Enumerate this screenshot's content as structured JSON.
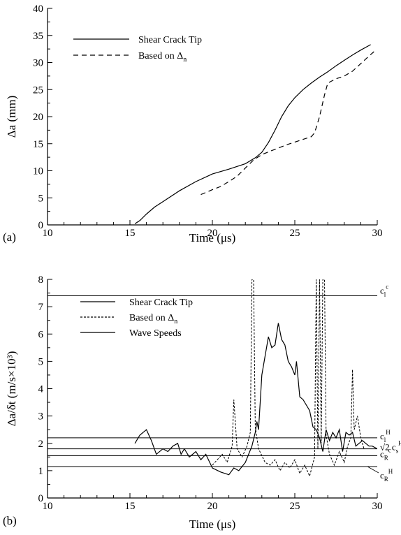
{
  "chart_data": [
    {
      "panel_label": "(a)",
      "type": "line",
      "xlabel": "Time (μs)",
      "ylabel": "Δa (mm)",
      "xlim": [
        10,
        30
      ],
      "ylim": [
        0,
        40
      ],
      "xticks": [
        10,
        15,
        20,
        25,
        30
      ],
      "yticks": [
        0,
        5,
        10,
        15,
        20,
        25,
        30,
        35,
        40
      ],
      "legend_position": "top-left",
      "series": [
        {
          "name": "Shear Crack Tip",
          "style": "solid",
          "x": [
            15.3,
            15.6,
            16.0,
            16.5,
            17.0,
            18.0,
            19.0,
            20.0,
            21.0,
            22.0,
            22.6,
            23.0,
            23.4,
            23.8,
            24.2,
            24.6,
            25.0,
            25.5,
            26.0,
            26.5,
            27.0,
            27.5,
            28.0,
            28.5,
            29.0,
            29.6
          ],
          "values": [
            0.2,
            0.8,
            2.0,
            3.3,
            4.3,
            6.3,
            8.0,
            9.4,
            10.3,
            11.3,
            12.4,
            13.4,
            15.2,
            17.5,
            20.0,
            22.0,
            23.5,
            25.0,
            26.2,
            27.3,
            28.3,
            29.4,
            30.4,
            31.4,
            32.3,
            33.3
          ]
        },
        {
          "name": "Based on Δn",
          "style": "dashed",
          "x": [
            19.3,
            20.0,
            20.5,
            21.0,
            21.5,
            22.0,
            22.5,
            23.0,
            23.5,
            24.0,
            24.5,
            25.0,
            25.5,
            26.0,
            26.2,
            26.5,
            26.8,
            27.0,
            27.5,
            28.0,
            28.5,
            29.0,
            29.5,
            29.8
          ],
          "values": [
            5.6,
            6.5,
            7.1,
            8.0,
            9.0,
            10.5,
            12.0,
            13.0,
            13.6,
            14.2,
            14.8,
            15.3,
            15.8,
            16.3,
            17.0,
            20.0,
            24.0,
            26.2,
            27.0,
            27.5,
            28.4,
            29.8,
            31.2,
            32.0
          ]
        }
      ]
    },
    {
      "panel_label": "(b)",
      "type": "line",
      "xlabel": "Time (μs)",
      "ylabel": "Δa/δt (m/s×10³)",
      "xlim": [
        10,
        30
      ],
      "ylim": [
        0,
        8
      ],
      "xticks": [
        10,
        15,
        20,
        25,
        30
      ],
      "yticks": [
        0,
        1,
        2,
        3,
        4,
        5,
        6,
        7,
        8
      ],
      "legend_position": "top-left",
      "series": [
        {
          "name": "Shear Crack Tip",
          "style": "solid",
          "x": [
            15.3,
            15.6,
            16.0,
            16.3,
            16.6,
            17.0,
            17.3,
            17.6,
            17.9,
            18.1,
            18.3,
            18.6,
            19.0,
            19.3,
            19.6,
            20.0,
            20.5,
            21.0,
            21.3,
            21.6,
            22.0,
            22.2,
            22.4,
            22.6,
            22.7,
            22.8,
            23.0,
            23.2,
            23.4,
            23.6,
            23.8,
            24.0,
            24.2,
            24.4,
            24.6,
            24.8,
            25.0,
            25.1,
            25.3,
            25.5,
            25.7,
            25.9,
            26.1,
            26.3,
            26.5,
            26.7,
            26.9,
            27.1,
            27.3,
            27.5,
            27.7,
            27.9,
            28.1,
            28.3,
            28.5,
            28.7,
            28.9,
            29.1,
            29.3,
            29.5,
            29.7,
            30.0
          ],
          "values": [
            2.0,
            2.3,
            2.5,
            2.1,
            1.6,
            1.8,
            1.7,
            1.9,
            2.0,
            1.6,
            1.8,
            1.5,
            1.7,
            1.4,
            1.6,
            1.1,
            0.95,
            0.85,
            1.1,
            1.0,
            1.3,
            1.6,
            1.9,
            2.4,
            2.8,
            2.5,
            4.5,
            5.2,
            5.9,
            5.5,
            5.6,
            6.4,
            5.8,
            5.6,
            5.0,
            4.8,
            4.5,
            5.0,
            3.7,
            3.6,
            3.4,
            3.2,
            2.6,
            2.5,
            2.2,
            1.7,
            2.5,
            2.1,
            2.4,
            2.2,
            2.5,
            1.7,
            2.4,
            2.3,
            2.4,
            1.9,
            2.0,
            2.1,
            2.0,
            1.9,
            1.9,
            1.8
          ]
        },
        {
          "name": "Based on Δn",
          "style": "dotted",
          "x": [
            20.0,
            20.3,
            20.6,
            20.9,
            21.2,
            21.3,
            21.5,
            21.8,
            22.1,
            22.3,
            22.4,
            22.5,
            22.6,
            22.8,
            23.2,
            23.5,
            23.8,
            24.1,
            24.4,
            24.7,
            25.0,
            25.3,
            25.6,
            25.9,
            26.2,
            26.3,
            26.4,
            26.5,
            26.6,
            26.7,
            26.8,
            26.9,
            27.1,
            27.4,
            27.7,
            28.0,
            28.2,
            28.4,
            28.5,
            28.6,
            28.8,
            29.0,
            29.2
          ],
          "values": [
            1.2,
            1.4,
            1.6,
            1.3,
            1.9,
            3.6,
            1.8,
            1.5,
            1.9,
            2.4,
            8.0,
            8.0,
            2.6,
            1.8,
            1.3,
            1.2,
            1.4,
            1.0,
            1.3,
            1.1,
            1.4,
            0.9,
            1.2,
            0.8,
            1.5,
            8.0,
            1.8,
            8.0,
            2.0,
            8.0,
            8.0,
            2.3,
            1.6,
            1.2,
            1.7,
            1.3,
            1.9,
            2.2,
            4.7,
            2.5,
            3.0,
            2.2,
            1.8
          ]
        },
        {
          "name": "Wave Speeds",
          "style": "solid",
          "reference_lines": [
            {
              "value": 7.4,
              "label_main": "c",
              "label_sub": "l",
              "label_sup": "c"
            },
            {
              "value": 2.2,
              "label_main": "c",
              "label_sub": "l",
              "label_sup": "H"
            },
            {
              "value": 1.8,
              "label_main": "√2 c",
              "label_sub": "s",
              "label_sup": "H"
            },
            {
              "value": 1.55,
              "label_main": "c",
              "label_sub": "R",
              "label_sup": "c"
            },
            {
              "value": 1.15,
              "label_main": "c",
              "label_sub": "R",
              "label_sup": "H"
            }
          ]
        }
      ]
    }
  ]
}
